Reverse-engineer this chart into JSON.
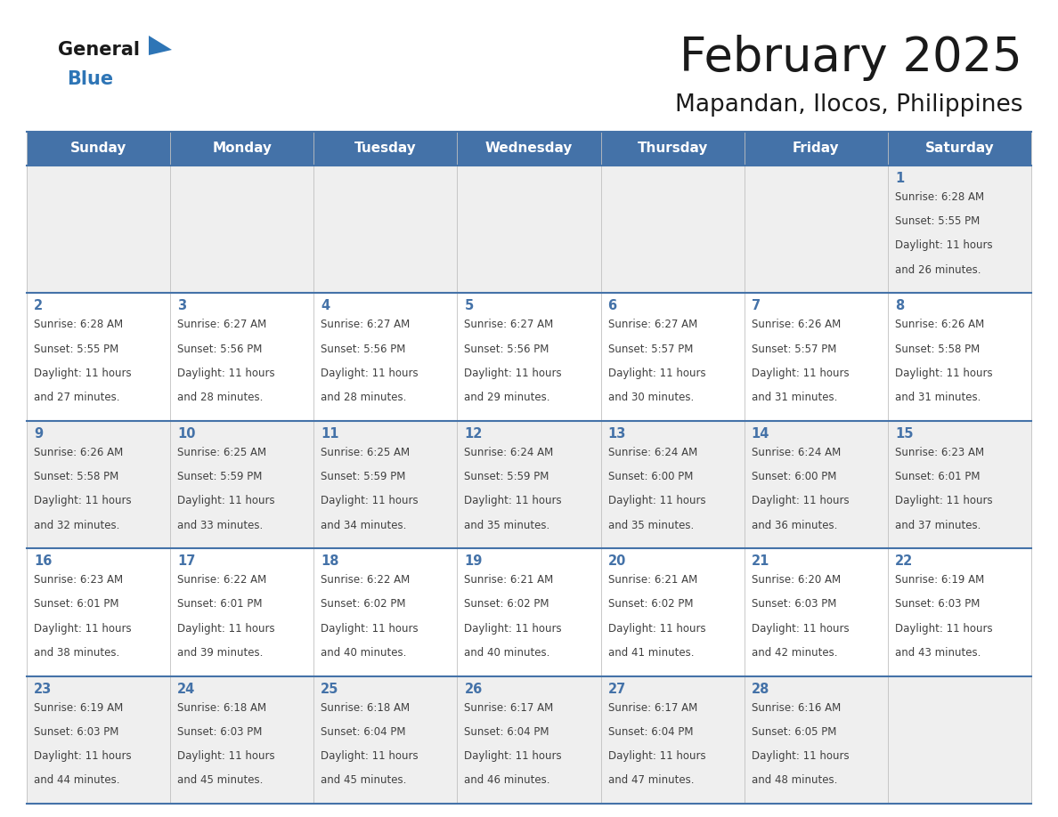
{
  "title": "February 2025",
  "subtitle": "Mapandan, Ilocos, Philippines",
  "days_of_week": [
    "Sunday",
    "Monday",
    "Tuesday",
    "Wednesday",
    "Thursday",
    "Friday",
    "Saturday"
  ],
  "header_bg": "#4472a8",
  "header_text": "#ffffff",
  "row_bg_odd": "#efefef",
  "row_bg_even": "#ffffff",
  "cell_border": "#4472a8",
  "day_num_color": "#4472a8",
  "text_color": "#404040",
  "logo_general_color": "#1a1a1a",
  "logo_blue_color": "#2e75b6",
  "calendar": [
    [
      null,
      null,
      null,
      null,
      null,
      null,
      {
        "day": 1,
        "sunrise": "6:28 AM",
        "sunset": "5:55 PM",
        "daylight": "11 hours and 26 minutes."
      }
    ],
    [
      {
        "day": 2,
        "sunrise": "6:28 AM",
        "sunset": "5:55 PM",
        "daylight": "11 hours and 27 minutes."
      },
      {
        "day": 3,
        "sunrise": "6:27 AM",
        "sunset": "5:56 PM",
        "daylight": "11 hours and 28 minutes."
      },
      {
        "day": 4,
        "sunrise": "6:27 AM",
        "sunset": "5:56 PM",
        "daylight": "11 hours and 28 minutes."
      },
      {
        "day": 5,
        "sunrise": "6:27 AM",
        "sunset": "5:56 PM",
        "daylight": "11 hours and 29 minutes."
      },
      {
        "day": 6,
        "sunrise": "6:27 AM",
        "sunset": "5:57 PM",
        "daylight": "11 hours and 30 minutes."
      },
      {
        "day": 7,
        "sunrise": "6:26 AM",
        "sunset": "5:57 PM",
        "daylight": "11 hours and 31 minutes."
      },
      {
        "day": 8,
        "sunrise": "6:26 AM",
        "sunset": "5:58 PM",
        "daylight": "11 hours and 31 minutes."
      }
    ],
    [
      {
        "day": 9,
        "sunrise": "6:26 AM",
        "sunset": "5:58 PM",
        "daylight": "11 hours and 32 minutes."
      },
      {
        "day": 10,
        "sunrise": "6:25 AM",
        "sunset": "5:59 PM",
        "daylight": "11 hours and 33 minutes."
      },
      {
        "day": 11,
        "sunrise": "6:25 AM",
        "sunset": "5:59 PM",
        "daylight": "11 hours and 34 minutes."
      },
      {
        "day": 12,
        "sunrise": "6:24 AM",
        "sunset": "5:59 PM",
        "daylight": "11 hours and 35 minutes."
      },
      {
        "day": 13,
        "sunrise": "6:24 AM",
        "sunset": "6:00 PM",
        "daylight": "11 hours and 35 minutes."
      },
      {
        "day": 14,
        "sunrise": "6:24 AM",
        "sunset": "6:00 PM",
        "daylight": "11 hours and 36 minutes."
      },
      {
        "day": 15,
        "sunrise": "6:23 AM",
        "sunset": "6:01 PM",
        "daylight": "11 hours and 37 minutes."
      }
    ],
    [
      {
        "day": 16,
        "sunrise": "6:23 AM",
        "sunset": "6:01 PM",
        "daylight": "11 hours and 38 minutes."
      },
      {
        "day": 17,
        "sunrise": "6:22 AM",
        "sunset": "6:01 PM",
        "daylight": "11 hours and 39 minutes."
      },
      {
        "day": 18,
        "sunrise": "6:22 AM",
        "sunset": "6:02 PM",
        "daylight": "11 hours and 40 minutes."
      },
      {
        "day": 19,
        "sunrise": "6:21 AM",
        "sunset": "6:02 PM",
        "daylight": "11 hours and 40 minutes."
      },
      {
        "day": 20,
        "sunrise": "6:21 AM",
        "sunset": "6:02 PM",
        "daylight": "11 hours and 41 minutes."
      },
      {
        "day": 21,
        "sunrise": "6:20 AM",
        "sunset": "6:03 PM",
        "daylight": "11 hours and 42 minutes."
      },
      {
        "day": 22,
        "sunrise": "6:19 AM",
        "sunset": "6:03 PM",
        "daylight": "11 hours and 43 minutes."
      }
    ],
    [
      {
        "day": 23,
        "sunrise": "6:19 AM",
        "sunset": "6:03 PM",
        "daylight": "11 hours and 44 minutes."
      },
      {
        "day": 24,
        "sunrise": "6:18 AM",
        "sunset": "6:03 PM",
        "daylight": "11 hours and 45 minutes."
      },
      {
        "day": 25,
        "sunrise": "6:18 AM",
        "sunset": "6:04 PM",
        "daylight": "11 hours and 45 minutes."
      },
      {
        "day": 26,
        "sunrise": "6:17 AM",
        "sunset": "6:04 PM",
        "daylight": "11 hours and 46 minutes."
      },
      {
        "day": 27,
        "sunrise": "6:17 AM",
        "sunset": "6:04 PM",
        "daylight": "11 hours and 47 minutes."
      },
      {
        "day": 28,
        "sunrise": "6:16 AM",
        "sunset": "6:05 PM",
        "daylight": "11 hours and 48 minutes."
      },
      null
    ]
  ]
}
